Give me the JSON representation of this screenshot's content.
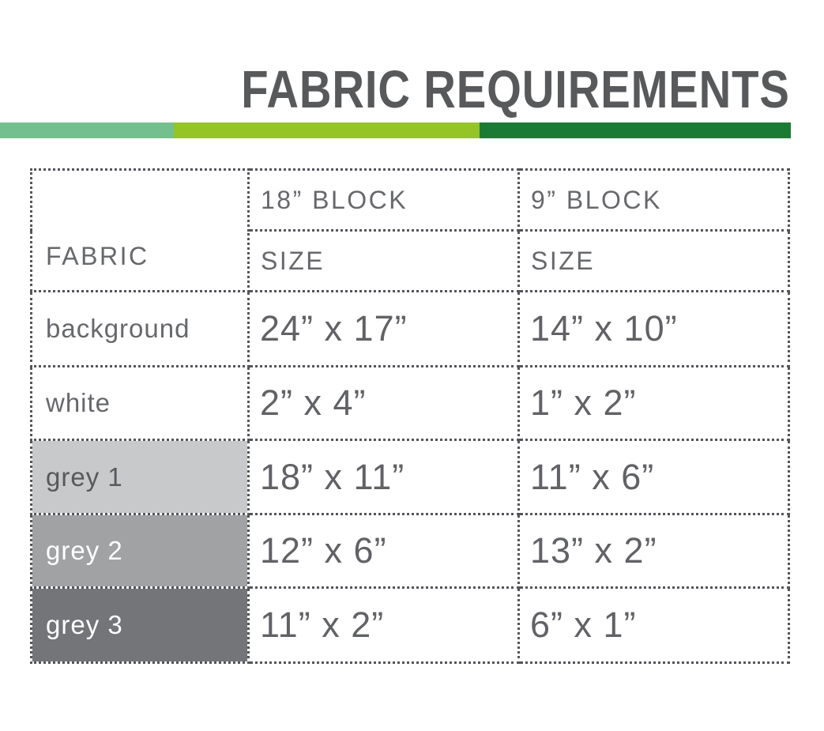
{
  "title": "FABRIC REQUIREMENTS",
  "accent_bar": {
    "segments": [
      {
        "name": "sage-green",
        "color": "#74BF8E"
      },
      {
        "name": "lime-green",
        "color": "#95C426"
      },
      {
        "name": "dark-green",
        "color": "#1B7B34"
      }
    ]
  },
  "table": {
    "corner_label": "FABRIC",
    "column_groups": [
      {
        "block_label": "18” BLOCK",
        "size_label": "SIZE"
      },
      {
        "block_label": "9” BLOCK",
        "size_label": "SIZE"
      }
    ],
    "rows": [
      {
        "fabric": "background",
        "block18_size": "24” x 17”",
        "block9_size": "14” x 10”",
        "swatch_color": null,
        "label_color": null
      },
      {
        "fabric": "white",
        "block18_size": "2” x 4”",
        "block9_size": "1” x 2”",
        "swatch_color": null,
        "label_color": null
      },
      {
        "fabric": "grey 1",
        "block18_size": "18” x 11”",
        "block9_size": "11” x 6”",
        "swatch_color": "#C8C9CB",
        "label_color": "#58595B"
      },
      {
        "fabric": "grey 2",
        "block18_size": "12” x 6”",
        "block9_size": "13” x 2”",
        "swatch_color": "#A1A2A4",
        "label_color": "#FFFFFF"
      },
      {
        "fabric": "grey 3",
        "block18_size": "11” x 2”",
        "block9_size": "6” x 1”",
        "swatch_color": "#747578",
        "label_color": "#FFFFFF"
      }
    ]
  }
}
